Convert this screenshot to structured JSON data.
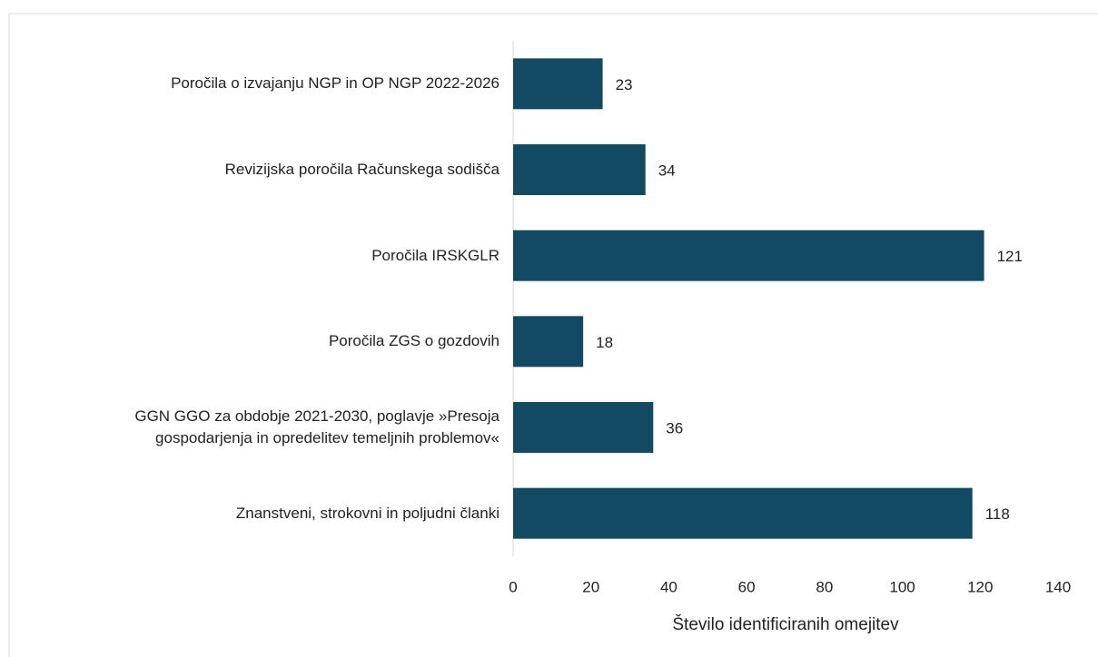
{
  "chart_data": {
    "type": "bar",
    "orientation": "horizontal",
    "categories": [
      "Poročila o izvajanju NGP in OP NGP 2022-2026",
      "Revizijska poročila Računskega sodišča",
      "Poročila IRSKGLR",
      "Poročila ZGS o gozdovih",
      "GGN GGO za obdobje 2021-2030,  poglavje »Presoja\ngospodarjenja in opredelitev temeljnih problemov«",
      "Znanstveni, strokovni in poljudni članki"
    ],
    "values": [
      23,
      34,
      121,
      18,
      36,
      118
    ],
    "color": "#124a63",
    "xlabel": "Število identificiranih omejitev",
    "xlim": [
      0,
      140
    ],
    "xticks": [
      0,
      20,
      40,
      60,
      80,
      100,
      120,
      140
    ],
    "grid": false
  }
}
